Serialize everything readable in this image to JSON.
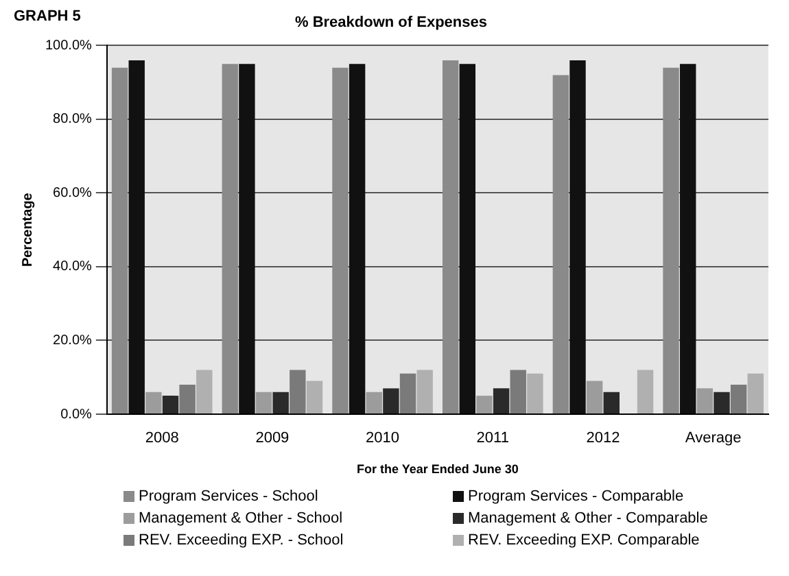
{
  "chart_data": {
    "type": "bar",
    "title": "% Breakdown of Expenses",
    "xlabel": "For the Year Ended June 30",
    "ylabel": "Percentage",
    "annotations": [
      "GRAPH 5"
    ],
    "categories": [
      "2008",
      "2009",
      "2010",
      "2011",
      "2012",
      "Average"
    ],
    "series": [
      {
        "name": "Program Services - School",
        "color": "#8a8a8a",
        "values": [
          94,
          95,
          94,
          96,
          92,
          94
        ]
      },
      {
        "name": "Program Services - Comparable",
        "color": "#111111",
        "values": [
          96,
          95,
          95,
          95,
          96,
          95
        ]
      },
      {
        "name": "Management & Other - School",
        "color": "#9c9c9c",
        "values": [
          6,
          6,
          6,
          5,
          9,
          7
        ]
      },
      {
        "name": "Management & Other - Comparable",
        "color": "#2a2a2a",
        "values": [
          5,
          6,
          7,
          7,
          6,
          6
        ]
      },
      {
        "name": "REV. Exceeding EXP. - School",
        "color": "#7a7a7a",
        "values": [
          8,
          12,
          11,
          12,
          0,
          8
        ]
      },
      {
        "name": "REV. Exceeding EXP. Comparable",
        "color": "#b0b0b0",
        "values": [
          12,
          9,
          12,
          11,
          12,
          11
        ]
      }
    ],
    "ylim": [
      0,
      100
    ],
    "yticks": [
      {
        "value": 0,
        "label": "0.0%"
      },
      {
        "value": 20,
        "label": "20.0%"
      },
      {
        "value": 40,
        "label": "40.0%"
      },
      {
        "value": 60,
        "label": "60.0%"
      },
      {
        "value": 80,
        "label": "80.0%"
      },
      {
        "value": 100,
        "label": "100.0%"
      }
    ],
    "grid": "y",
    "legend": "bottom"
  }
}
